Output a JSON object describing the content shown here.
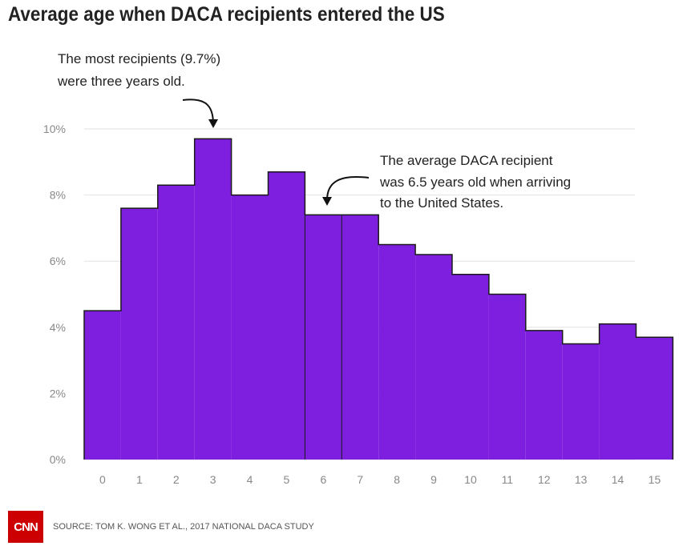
{
  "title": "Average age when DACA recipients entered the US",
  "chart_data": {
    "type": "bar",
    "title": "Average age when DACA recipients entered the US",
    "categories": [
      "0",
      "1",
      "2",
      "3",
      "4",
      "5",
      "6",
      "7",
      "8",
      "9",
      "10",
      "11",
      "12",
      "13",
      "14",
      "15"
    ],
    "values": [
      4.5,
      7.6,
      8.3,
      9.7,
      8.0,
      8.7,
      7.4,
      7.4,
      6.5,
      6.2,
      5.6,
      5.0,
      3.9,
      3.5,
      4.1,
      3.7
    ],
    "y_ticks": [
      "0%",
      "2%",
      "4%",
      "6%",
      "8%",
      "10%"
    ],
    "ylim": [
      0,
      10
    ],
    "xlabel": "",
    "ylabel": "",
    "grid": true,
    "bar_color": "#7e1fe0",
    "annotations": [
      {
        "lines": [
          "The most recipients (9.7%)",
          "were three years old."
        ],
        "target": "3"
      },
      {
        "lines": [
          "The average DACA recipient",
          "was 6.5 years old when arriving",
          "to the United States."
        ],
        "target": "6.5"
      }
    ]
  },
  "footer": {
    "logo": "CNN",
    "source": "SOURCE: TOM K. WONG ET AL., 2017 NATIONAL DACA STUDY"
  },
  "colors": {
    "bar": "#7e1fe0",
    "logo": "#cc0000"
  }
}
